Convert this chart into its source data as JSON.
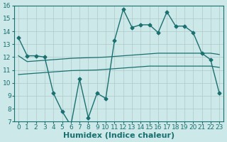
{
  "xlabel": "Humidex (Indice chaleur)",
  "background_color": "#cce8e8",
  "grid_color": "#b0c8c8",
  "line_color": "#1a7070",
  "x": [
    0,
    1,
    2,
    3,
    4,
    5,
    6,
    7,
    8,
    9,
    10,
    11,
    12,
    13,
    14,
    15,
    16,
    17,
    18,
    19,
    20,
    21,
    22,
    23
  ],
  "y_main": [
    13.5,
    12.1,
    12.1,
    12.0,
    9.2,
    7.8,
    6.7,
    10.3,
    7.3,
    9.2,
    8.8,
    13.3,
    15.7,
    14.3,
    14.5,
    14.5,
    13.9,
    15.5,
    14.4,
    14.4,
    13.9,
    12.3,
    11.8,
    9.2
  ],
  "y_upper": [
    12.1,
    11.65,
    11.7,
    11.75,
    11.8,
    11.85,
    11.9,
    11.93,
    11.95,
    11.97,
    12.0,
    12.05,
    12.1,
    12.15,
    12.2,
    12.25,
    12.3,
    12.3,
    12.3,
    12.3,
    12.3,
    12.3,
    12.3,
    12.2
  ],
  "y_lower": [
    10.65,
    10.7,
    10.75,
    10.8,
    10.85,
    10.9,
    10.95,
    10.97,
    10.98,
    11.0,
    11.05,
    11.1,
    11.15,
    11.2,
    11.25,
    11.3,
    11.3,
    11.3,
    11.3,
    11.3,
    11.3,
    11.3,
    11.3,
    11.2
  ],
  "ylim": [
    7,
    16
  ],
  "xlim": [
    -0.5,
    23.5
  ],
  "xticks": [
    0,
    1,
    2,
    3,
    4,
    5,
    6,
    7,
    8,
    9,
    10,
    11,
    12,
    13,
    14,
    15,
    16,
    17,
    18,
    19,
    20,
    21,
    22,
    23
  ],
  "yticks": [
    7,
    8,
    9,
    10,
    11,
    12,
    13,
    14,
    15,
    16
  ],
  "tick_fontsize": 6.5,
  "xlabel_fontsize": 8
}
